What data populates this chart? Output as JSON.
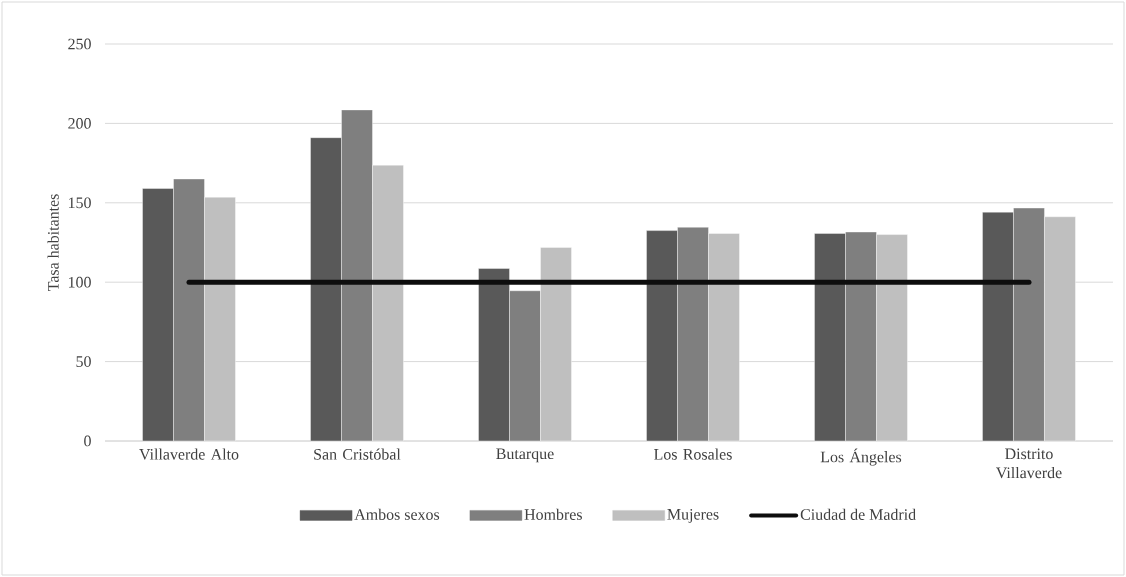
{
  "chart_data": {
    "type": "bar",
    "ylabel": "Tasa habitantes",
    "categories": [
      "Villaverde Alto",
      "San Cristóbal",
      "Butarque",
      "Los Rosales",
      "Los Ángeles",
      "Distrito Villaverde"
    ],
    "series": [
      {
        "name": "Ambos sexos",
        "color": "#595959",
        "values": [
          159,
          191,
          108.6,
          132.5,
          130.7,
          144.1
        ]
      },
      {
        "name": "Hombres",
        "color": "#7f7f7f",
        "values": [
          165,
          208.5,
          94.6,
          134.6,
          131.6,
          146.7
        ]
      },
      {
        "name": "Mujeres",
        "color": "#bfbfbf",
        "values": [
          153.5,
          173.7,
          121.9,
          130.7,
          130,
          141.2
        ]
      },
      {
        "name": "Ciudad de Madrid",
        "color": "#0d0d0d",
        "type": "line",
        "values": [
          100,
          100,
          100,
          100,
          100,
          100
        ]
      }
    ],
    "ylim": [
      0,
      250
    ],
    "yticks": [
      0,
      50,
      100,
      150,
      200,
      250
    ],
    "grid": "y",
    "legend": "bottom"
  }
}
